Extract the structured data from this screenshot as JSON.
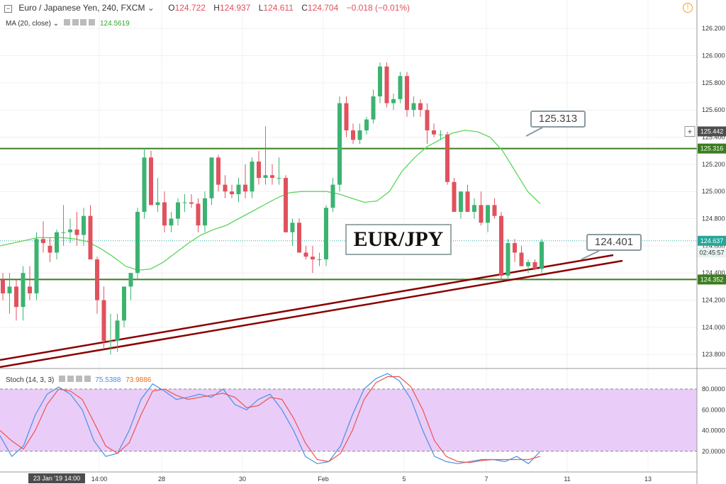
{
  "header": {
    "symbol": "Euro / Japanese Yen, 240, FXCM",
    "o_label": "O",
    "o_value": "124.722",
    "h_label": "H",
    "h_value": "124.937",
    "l_label": "L",
    "l_value": "124.611",
    "c_label": "C",
    "c_value": "124.704",
    "change": "−0.018 (−0.01%)"
  },
  "ma": {
    "label": "MA (20, close)",
    "value": "124.5619"
  },
  "stoch": {
    "label": "Stoch (14, 3, 3)",
    "k_value": "75.5388",
    "d_value": "73.9886"
  },
  "watermark": "EUR/JPY",
  "callouts": {
    "upper": "125.313",
    "lower": "124.401"
  },
  "price_axis": {
    "ticks": [
      "126.200",
      "126.000",
      "125.800",
      "125.600",
      "125.400",
      "125.200",
      "125.000",
      "124.800",
      "124.600",
      "124.400",
      "124.200",
      "124.000",
      "123.800"
    ],
    "badges": [
      {
        "text": "125.442",
        "price": 125.442,
        "color": "#4d4d4d"
      },
      {
        "text": "125.316",
        "price": 125.316,
        "color": "#3a7d1e"
      },
      {
        "text": "124.637",
        "price": 124.637,
        "color": "#26a69a"
      },
      {
        "text": "02:45:57",
        "price": 124.55,
        "color": "#e8f5f3",
        "dark": true
      },
      {
        "text": "124.352",
        "price": 124.352,
        "color": "#3a7d1e"
      }
    ]
  },
  "stoch_axis": {
    "ticks": [
      "80.0000",
      "60.0000",
      "40.0000",
      "20.0000"
    ]
  },
  "time_axis": {
    "labels": [
      "14:00",
      "28",
      "30",
      "Feb",
      "5",
      "7",
      "11",
      "13"
    ],
    "current_label": "23 Jan '19   14:00"
  },
  "colors": {
    "up": "#3cb371",
    "down": "#e0525e",
    "ma": "#5cd65c",
    "level": "#3a7d1e",
    "trend": "#8b0000",
    "stoch_k": "#4a90e2",
    "stoch_d": "#ef5350",
    "stoch_band": "#e9cdf8"
  },
  "chart_data": {
    "type": "candlestick",
    "ylim": [
      123.65,
      126.3
    ],
    "levels": [
      125.316,
      124.352
    ],
    "candles": [
      [
        124.35,
        124.4,
        124.2,
        124.25
      ],
      [
        124.25,
        124.4,
        124.1,
        124.3
      ],
      [
        124.3,
        124.35,
        124.05,
        124.15
      ],
      [
        124.15,
        124.45,
        124.05,
        124.4
      ],
      [
        124.3,
        124.45,
        124.2,
        124.25
      ],
      [
        124.25,
        124.7,
        124.2,
        124.65
      ],
      [
        124.65,
        124.78,
        124.55,
        124.62
      ],
      [
        124.6,
        124.66,
        124.48,
        124.55
      ],
      [
        124.55,
        124.72,
        124.5,
        124.7
      ],
      [
        124.7,
        124.9,
        124.6,
        124.7
      ],
      [
        124.7,
        124.8,
        124.62,
        124.72
      ],
      [
        124.72,
        124.85,
        124.6,
        124.68
      ],
      [
        124.68,
        124.88,
        124.6,
        124.82
      ],
      [
        124.82,
        124.9,
        124.5,
        124.5
      ],
      [
        124.5,
        124.52,
        124.1,
        124.2
      ],
      [
        124.2,
        124.3,
        123.85,
        123.9
      ],
      [
        123.9,
        124.1,
        123.8,
        123.9
      ],
      [
        123.9,
        124.1,
        123.82,
        124.05
      ],
      [
        124.05,
        124.3,
        124.0,
        124.3
      ],
      [
        124.3,
        124.4,
        124.2,
        124.4
      ],
      [
        124.4,
        124.88,
        124.35,
        124.85
      ],
      [
        124.85,
        125.32,
        124.8,
        125.25
      ],
      [
        125.25,
        125.3,
        124.9,
        124.9
      ],
      [
        124.9,
        125.1,
        124.85,
        124.92
      ],
      [
        124.92,
        125.0,
        124.7,
        124.75
      ],
      [
        124.75,
        124.85,
        124.7,
        124.8
      ],
      [
        124.8,
        124.95,
        124.75,
        124.92
      ],
      [
        124.92,
        124.98,
        124.85,
        124.92
      ],
      [
        124.92,
        124.98,
        124.88,
        124.91
      ],
      [
        124.91,
        124.95,
        124.7,
        124.75
      ],
      [
        124.75,
        125.0,
        124.7,
        124.95
      ],
      [
        124.95,
        125.25,
        124.9,
        125.25
      ],
      [
        125.25,
        125.27,
        125.0,
        125.05
      ],
      [
        125.05,
        125.12,
        124.95,
        125.0
      ],
      [
        125.0,
        125.05,
        124.95,
        124.98
      ],
      [
        124.98,
        125.1,
        124.92,
        125.05
      ],
      [
        125.05,
        125.2,
        124.95,
        125.0
      ],
      [
        125.0,
        125.25,
        124.95,
        125.22
      ],
      [
        125.22,
        125.3,
        125.05,
        125.1
      ],
      [
        125.1,
        125.48,
        125.05,
        125.12
      ],
      [
        125.12,
        125.2,
        125.05,
        125.1
      ],
      [
        125.1,
        125.25,
        125.05,
        125.1
      ],
      [
        125.1,
        125.12,
        124.7,
        124.7
      ],
      [
        124.7,
        124.8,
        124.6,
        124.77
      ],
      [
        124.77,
        124.8,
        124.55,
        124.55
      ],
      [
        124.55,
        124.6,
        124.5,
        124.52
      ],
      [
        124.52,
        124.6,
        124.4,
        124.5
      ],
      [
        124.5,
        124.55,
        124.45,
        124.5
      ],
      [
        124.5,
        124.9,
        124.45,
        124.88
      ],
      [
        124.88,
        125.1,
        124.85,
        125.05
      ],
      [
        125.05,
        125.7,
        125.0,
        125.65
      ],
      [
        125.65,
        125.7,
        125.4,
        125.45
      ],
      [
        125.45,
        125.5,
        125.35,
        125.38
      ],
      [
        125.38,
        125.5,
        125.35,
        125.45
      ],
      [
        125.45,
        125.55,
        125.42,
        125.53
      ],
      [
        125.53,
        125.75,
        125.5,
        125.7
      ],
      [
        125.7,
        125.95,
        125.65,
        125.92
      ],
      [
        125.92,
        125.95,
        125.62,
        125.65
      ],
      [
        125.65,
        125.72,
        125.6,
        125.68
      ],
      [
        125.68,
        125.88,
        125.65,
        125.85
      ],
      [
        125.85,
        125.88,
        125.55,
        125.6
      ],
      [
        125.6,
        125.7,
        125.55,
        125.65
      ],
      [
        125.65,
        125.68,
        125.55,
        125.6
      ],
      [
        125.6,
        125.65,
        125.35,
        125.45
      ],
      [
        125.45,
        125.5,
        125.4,
        125.42
      ],
      [
        125.42,
        125.45,
        125.38,
        125.42
      ],
      [
        125.42,
        125.44,
        125.05,
        125.07
      ],
      [
        125.07,
        125.1,
        124.85,
        124.85
      ],
      [
        124.85,
        125.0,
        124.8,
        125.0
      ],
      [
        125.0,
        125.05,
        124.85,
        124.85
      ],
      [
        124.85,
        124.95,
        124.8,
        124.9
      ],
      [
        124.9,
        125.0,
        124.75,
        124.77
      ],
      [
        124.77,
        124.9,
        124.7,
        124.9
      ],
      [
        124.9,
        124.95,
        124.8,
        124.82
      ],
      [
        124.82,
        124.85,
        124.35,
        124.38
      ],
      [
        124.38,
        124.65,
        124.35,
        124.62
      ],
      [
        124.62,
        124.65,
        124.48,
        124.55
      ],
      [
        124.55,
        124.6,
        124.45,
        124.45
      ],
      [
        124.45,
        124.5,
        124.4,
        124.48
      ],
      [
        124.48,
        124.5,
        124.42,
        124.43
      ],
      [
        124.43,
        124.65,
        124.4,
        124.63
      ]
    ],
    "ma_line": [
      124.6,
      124.62,
      124.64,
      124.66,
      124.66,
      124.66,
      124.65,
      124.63,
      124.58,
      124.52,
      124.45,
      124.42,
      124.43,
      124.48,
      124.55,
      124.62,
      124.68,
      124.72,
      124.75,
      124.8,
      124.85,
      124.9,
      124.95,
      124.99,
      125.0,
      125.0,
      125.0,
      124.98,
      124.95,
      124.92,
      124.93,
      125.0,
      125.15,
      125.25,
      125.33,
      125.38,
      125.43,
      125.45,
      125.44,
      125.4,
      125.3,
      125.15,
      125.0,
      124.91
    ],
    "stoch_k": [
      35,
      15,
      25,
      55,
      75,
      82,
      75,
      60,
      30,
      15,
      18,
      40,
      70,
      85,
      78,
      70,
      72,
      75,
      72,
      80,
      65,
      60,
      70,
      75,
      60,
      40,
      15,
      8,
      10,
      25,
      55,
      80,
      90,
      95,
      88,
      70,
      40,
      15,
      10,
      8,
      10,
      12,
      12,
      10,
      15,
      8,
      20
    ],
    "stoch_d": [
      40,
      30,
      22,
      40,
      65,
      80,
      78,
      70,
      48,
      25,
      18,
      28,
      55,
      78,
      80,
      74,
      70,
      72,
      74,
      76,
      72,
      62,
      64,
      72,
      70,
      52,
      28,
      12,
      10,
      18,
      40,
      70,
      86,
      92,
      92,
      82,
      60,
      30,
      15,
      10,
      9,
      11,
      12,
      12,
      12,
      12,
      15
    ],
    "stoch_range": [
      0,
      100
    ]
  }
}
